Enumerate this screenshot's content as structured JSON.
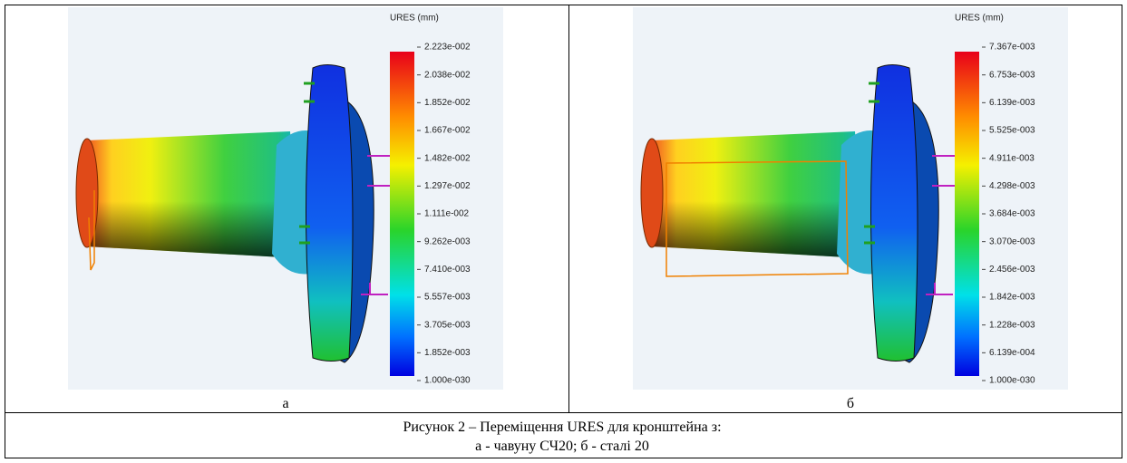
{
  "panels": [
    {
      "legend": {
        "title": "URES (mm)",
        "labels": [
          "2.223e-002",
          "2.038e-002",
          "1.852e-002",
          "1.667e-002",
          "1.482e-002",
          "1.297e-002",
          "1.111e-002",
          "9.262e-003",
          "7.410e-003",
          "5.557e-003",
          "3.705e-003",
          "1.852e-003",
          "1.000e-030"
        ]
      },
      "label": "а"
    },
    {
      "legend": {
        "title": "URES (mm)",
        "labels": [
          "7.367e-003",
          "6.753e-003",
          "6.139e-003",
          "5.525e-003",
          "4.911e-003",
          "4.298e-003",
          "3.684e-003",
          "3.070e-003",
          "2.456e-003",
          "1.842e-003",
          "1.228e-003",
          "6.139e-004",
          "1.000e-030"
        ]
      },
      "label": "б"
    }
  ],
  "caption": {
    "line1": "Рисунок 2 – Переміщення URES для кронштейна з:",
    "line2": "а - чавуну СЧ20; б - сталі 20"
  }
}
